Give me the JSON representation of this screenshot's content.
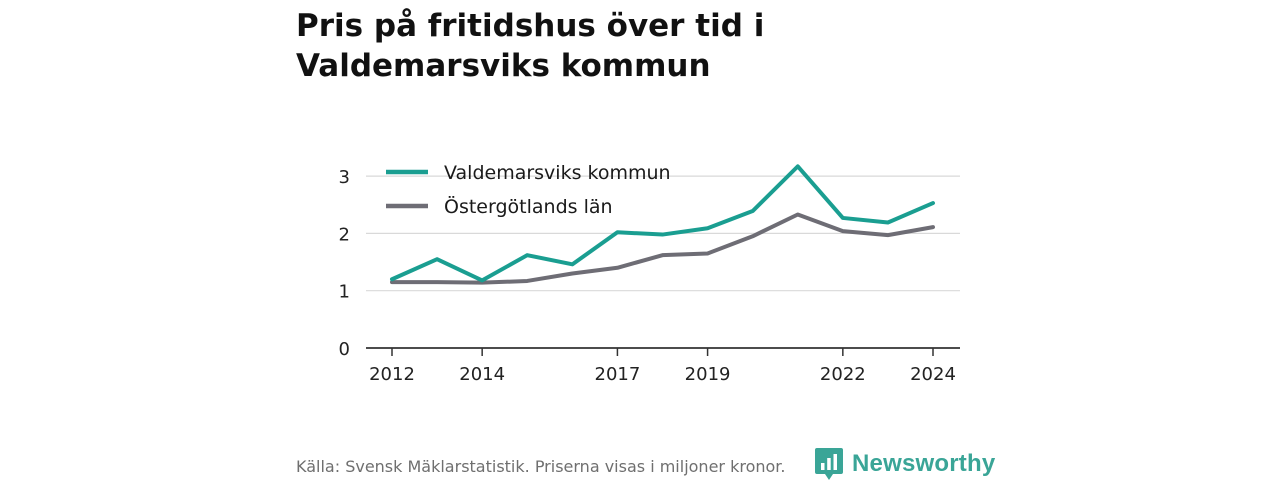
{
  "title": "Pris på fritidshus över tid i Valdemarsviks kommun",
  "footer": {
    "source": "Källa: Svensk Mäklarstatistik. Priserna visas i miljoner kronor.",
    "brand": "Newsworthy",
    "brand_icon": "newsworthy-logo-icon",
    "brand_color": "#3aa597"
  },
  "chart_data": {
    "type": "line",
    "x": [
      2012,
      2013,
      2014,
      2015,
      2016,
      2017,
      2018,
      2019,
      2020,
      2021,
      2022,
      2023,
      2024
    ],
    "x_tick_labels": [
      "2012",
      "2014",
      "2017",
      "2019",
      "2022",
      "2024"
    ],
    "y_ticks": [
      0,
      1,
      2,
      3
    ],
    "ylim": [
      0,
      3.2
    ],
    "grid": true,
    "legend_position": "top-left",
    "series": [
      {
        "name": "Valdemarsviks kommun",
        "color": "#1a9e91",
        "values": [
          1.2,
          1.55,
          1.18,
          1.62,
          1.46,
          2.02,
          1.98,
          2.09,
          2.39,
          3.17,
          2.27,
          2.19,
          2.53
        ]
      },
      {
        "name": "Östergötlands län",
        "color": "#6e6d75",
        "values": [
          1.15,
          1.15,
          1.14,
          1.17,
          1.3,
          1.4,
          1.62,
          1.65,
          1.95,
          2.33,
          2.04,
          1.97,
          2.11
        ]
      }
    ]
  }
}
